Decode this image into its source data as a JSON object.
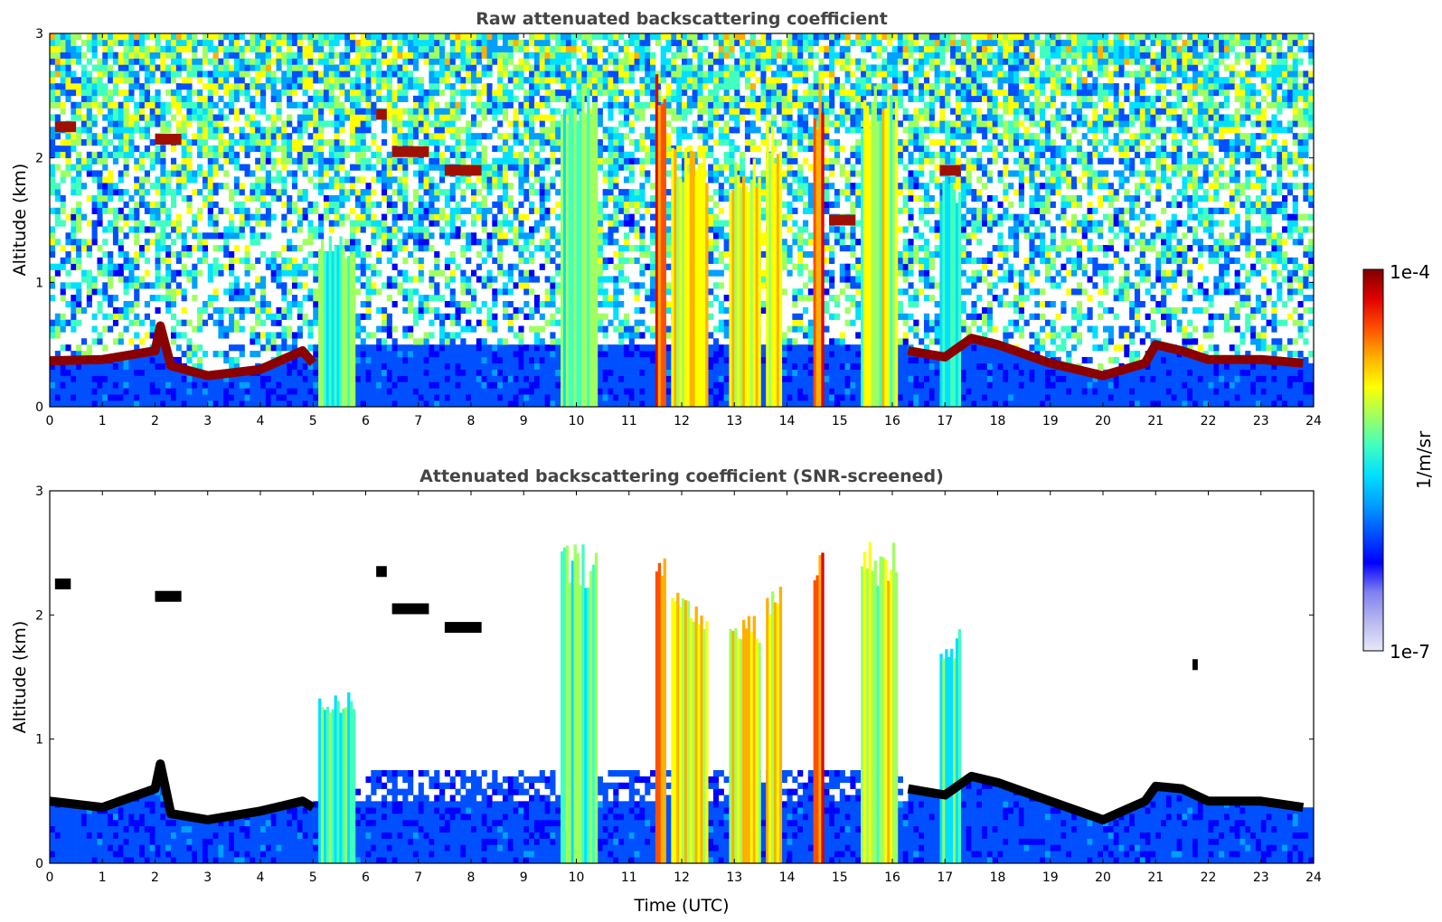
{
  "chart_data": [
    {
      "type": "heatmap",
      "title": "Raw attenuated backscattering coefficient",
      "xlabel": "",
      "ylabel": "Altitude (km)",
      "xlim": [
        0,
        24
      ],
      "ylim": [
        0,
        3
      ],
      "x_ticks": [
        0,
        1,
        2,
        3,
        4,
        5,
        6,
        7,
        8,
        9,
        10,
        11,
        12,
        13,
        14,
        15,
        16,
        17,
        18,
        19,
        20,
        21,
        22,
        23,
        24
      ],
      "y_ticks": [
        0,
        1,
        2,
        3
      ],
      "boundary_layer_top_km": [
        [
          0,
          0.37
        ],
        [
          1,
          0.38
        ],
        [
          2,
          0.45
        ],
        [
          2.1,
          0.65
        ],
        [
          2.3,
          0.33
        ],
        [
          3,
          0.25
        ],
        [
          4,
          0.3
        ],
        [
          4.8,
          0.45
        ],
        [
          5,
          0.35
        ],
        [
          16.3,
          0.45
        ],
        [
          17,
          0.4
        ],
        [
          17.5,
          0.55
        ],
        [
          18,
          0.5
        ],
        [
          19,
          0.35
        ],
        [
          20,
          0.25
        ],
        [
          20.8,
          0.35
        ],
        [
          21,
          0.5
        ],
        [
          21.5,
          0.45
        ],
        [
          22,
          0.38
        ],
        [
          23,
          0.38
        ],
        [
          23.8,
          0.35
        ]
      ],
      "cloud_columns": [
        {
          "t0": 9.7,
          "t1": 10.4,
          "top_km": 2.6,
          "level": 0.55
        },
        {
          "t0": 11.5,
          "t1": 11.7,
          "top_km": 2.7,
          "level": 0.85
        },
        {
          "t0": 11.8,
          "t1": 12.5,
          "top_km": 2.1,
          "level": 0.7
        },
        {
          "t0": 12.9,
          "t1": 13.5,
          "top_km": 2.0,
          "level": 0.7
        },
        {
          "t0": 13.6,
          "t1": 13.9,
          "top_km": 2.3,
          "level": 0.7
        },
        {
          "t0": 14.5,
          "t1": 14.7,
          "top_km": 2.6,
          "level": 0.85
        },
        {
          "t0": 15.4,
          "t1": 16.1,
          "top_km": 2.6,
          "level": 0.65
        },
        {
          "t0": 16.9,
          "t1": 17.3,
          "top_km": 1.9,
          "level": 0.5
        },
        {
          "t0": 5.1,
          "t1": 5.8,
          "top_km": 1.4,
          "level": 0.55
        }
      ],
      "elevated_layers": [
        {
          "t0": 0.1,
          "t1": 0.5,
          "alt_km": 2.25
        },
        {
          "t0": 2.0,
          "t1": 2.5,
          "alt_km": 2.15
        },
        {
          "t0": 6.5,
          "t1": 7.2,
          "alt_km": 2.05
        },
        {
          "t0": 6.2,
          "t1": 6.4,
          "alt_km": 2.35
        },
        {
          "t0": 7.5,
          "t1": 8.2,
          "alt_km": 1.9
        },
        {
          "t0": 14.8,
          "t1": 15.3,
          "alt_km": 1.5
        },
        {
          "t0": 16.9,
          "t1": 17.3,
          "alt_km": 1.9
        }
      ]
    },
    {
      "type": "heatmap",
      "title": "Attenuated backscattering coefficient (SNR-screened)",
      "xlabel": "Time (UTC)",
      "ylabel": "Altitude (km)",
      "xlim": [
        0,
        24
      ],
      "ylim": [
        0,
        3
      ],
      "x_ticks": [
        0,
        1,
        2,
        3,
        4,
        5,
        6,
        7,
        8,
        9,
        10,
        11,
        12,
        13,
        14,
        15,
        16,
        17,
        18,
        19,
        20,
        21,
        22,
        23,
        24
      ],
      "y_ticks": [
        0,
        1,
        2,
        3
      ],
      "boundary_layer_top_km": [
        [
          0,
          0.5
        ],
        [
          1,
          0.45
        ],
        [
          2,
          0.6
        ],
        [
          2.1,
          0.8
        ],
        [
          2.3,
          0.4
        ],
        [
          3,
          0.35
        ],
        [
          4,
          0.42
        ],
        [
          4.8,
          0.5
        ],
        [
          5,
          0.45
        ],
        [
          16.3,
          0.6
        ],
        [
          17,
          0.55
        ],
        [
          17.5,
          0.7
        ],
        [
          18,
          0.65
        ],
        [
          19,
          0.5
        ],
        [
          20,
          0.35
        ],
        [
          20.8,
          0.5
        ],
        [
          21,
          0.62
        ],
        [
          21.5,
          0.6
        ],
        [
          22,
          0.5
        ],
        [
          23,
          0.5
        ],
        [
          23.8,
          0.45
        ]
      ],
      "cloud_columns": [
        {
          "t0": 9.7,
          "t1": 10.4,
          "top_km": 2.6,
          "level": 0.55
        },
        {
          "t0": 11.5,
          "t1": 11.7,
          "top_km": 2.7,
          "level": 0.85
        },
        {
          "t0": 11.8,
          "t1": 12.5,
          "top_km": 2.2,
          "level": 0.7
        },
        {
          "t0": 12.9,
          "t1": 13.5,
          "top_km": 2.0,
          "level": 0.7
        },
        {
          "t0": 13.6,
          "t1": 13.9,
          "top_km": 2.3,
          "level": 0.7
        },
        {
          "t0": 14.5,
          "t1": 14.7,
          "top_km": 2.6,
          "level": 0.85
        },
        {
          "t0": 15.4,
          "t1": 16.1,
          "top_km": 2.6,
          "level": 0.65
        },
        {
          "t0": 16.9,
          "t1": 17.3,
          "top_km": 1.9,
          "level": 0.5
        },
        {
          "t0": 5.1,
          "t1": 5.8,
          "top_km": 1.4,
          "level": 0.55
        }
      ],
      "elevated_layers": [
        {
          "t0": 0.1,
          "t1": 0.4,
          "alt_km": 2.25
        },
        {
          "t0": 2.0,
          "t1": 2.5,
          "alt_km": 2.15
        },
        {
          "t0": 6.5,
          "t1": 7.2,
          "alt_km": 2.05
        },
        {
          "t0": 6.2,
          "t1": 6.4,
          "alt_km": 2.35
        },
        {
          "t0": 7.5,
          "t1": 8.2,
          "alt_km": 1.9
        },
        {
          "t0": 21.7,
          "t1": 21.8,
          "alt_km": 1.6
        }
      ]
    }
  ],
  "colorbar": {
    "label": "1/m/sr",
    "max_label": "1e-4",
    "min_label": "1e-7",
    "colormap": "jet",
    "stops": [
      "#e8e8f8",
      "#b8b8f0",
      "#8080f0",
      "#0000ff",
      "#0050ff",
      "#00a0ff",
      "#00e0ff",
      "#40ffc0",
      "#a0ff60",
      "#ffff00",
      "#ffb000",
      "#ff5000",
      "#e00000",
      "#800000"
    ]
  }
}
